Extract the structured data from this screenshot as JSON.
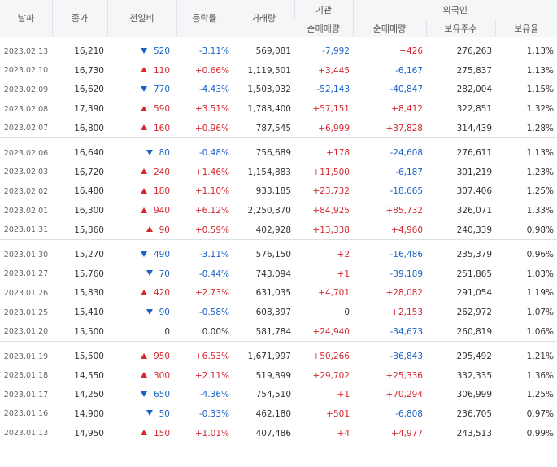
{
  "headers": {
    "date": "날짜",
    "close": "종가",
    "diff": "전일비",
    "rate": "등락률",
    "volume": "거래량",
    "institution": "기관",
    "foreigner": "외국인",
    "inst_net": "순매매량",
    "foreign_net": "순매매량",
    "holdings": "보유주수",
    "hold_ratio": "보유율"
  },
  "groups": [
    [
      {
        "date": "2023.02.13",
        "close": "16,210",
        "dir": "down",
        "diff": "520",
        "rate": "-3.11%",
        "volume": "569,081",
        "inst": "-7,992",
        "foreign": "+426",
        "holdings": "276,263",
        "ratio": "1.13%"
      },
      {
        "date": "2023.02.10",
        "close": "16,730",
        "dir": "up",
        "diff": "110",
        "rate": "+0.66%",
        "volume": "1,119,501",
        "inst": "+3,445",
        "foreign": "-6,167",
        "holdings": "275,837",
        "ratio": "1.13%"
      },
      {
        "date": "2023.02.09",
        "close": "16,620",
        "dir": "down",
        "diff": "770",
        "rate": "-4.43%",
        "volume": "1,503,032",
        "inst": "-52,143",
        "foreign": "-40,847",
        "holdings": "282,004",
        "ratio": "1.15%"
      },
      {
        "date": "2023.02.08",
        "close": "17,390",
        "dir": "up",
        "diff": "590",
        "rate": "+3.51%",
        "volume": "1,783,400",
        "inst": "+57,151",
        "foreign": "+8,412",
        "holdings": "322,851",
        "ratio": "1.32%"
      },
      {
        "date": "2023.02.07",
        "close": "16,800",
        "dir": "up",
        "diff": "160",
        "rate": "+0.96%",
        "volume": "787,545",
        "inst": "+6,999",
        "foreign": "+37,828",
        "holdings": "314,439",
        "ratio": "1.28%"
      }
    ],
    [
      {
        "date": "2023.02.06",
        "close": "16,640",
        "dir": "down",
        "diff": "80",
        "rate": "-0.48%",
        "volume": "756,689",
        "inst": "+178",
        "foreign": "-24,608",
        "holdings": "276,611",
        "ratio": "1.13%"
      },
      {
        "date": "2023.02.03",
        "close": "16,720",
        "dir": "up",
        "diff": "240",
        "rate": "+1.46%",
        "volume": "1,154,883",
        "inst": "+11,500",
        "foreign": "-6,187",
        "holdings": "301,219",
        "ratio": "1.23%"
      },
      {
        "date": "2023.02.02",
        "close": "16,480",
        "dir": "up",
        "diff": "180",
        "rate": "+1.10%",
        "volume": "933,185",
        "inst": "+23,732",
        "foreign": "-18,665",
        "holdings": "307,406",
        "ratio": "1.25%"
      },
      {
        "date": "2023.02.01",
        "close": "16,300",
        "dir": "up",
        "diff": "940",
        "rate": "+6.12%",
        "volume": "2,250,870",
        "inst": "+84,925",
        "foreign": "+85,732",
        "holdings": "326,071",
        "ratio": "1.33%"
      },
      {
        "date": "2023.01.31",
        "close": "15,360",
        "dir": "up",
        "diff": "90",
        "rate": "+0.59%",
        "volume": "402,928",
        "inst": "+13,338",
        "foreign": "+4,960",
        "holdings": "240,339",
        "ratio": "0.98%"
      }
    ],
    [
      {
        "date": "2023.01.30",
        "close": "15,270",
        "dir": "down",
        "diff": "490",
        "rate": "-3.11%",
        "volume": "576,150",
        "inst": "+2",
        "foreign": "-16,486",
        "holdings": "235,379",
        "ratio": "0.96%"
      },
      {
        "date": "2023.01.27",
        "close": "15,760",
        "dir": "down",
        "diff": "70",
        "rate": "-0.44%",
        "volume": "743,094",
        "inst": "+1",
        "foreign": "-39,189",
        "holdings": "251,865",
        "ratio": "1.03%"
      },
      {
        "date": "2023.01.26",
        "close": "15,830",
        "dir": "up",
        "diff": "420",
        "rate": "+2.73%",
        "volume": "631,035",
        "inst": "+4,701",
        "foreign": "+28,082",
        "holdings": "291,054",
        "ratio": "1.19%"
      },
      {
        "date": "2023.01.25",
        "close": "15,410",
        "dir": "down",
        "diff": "90",
        "rate": "-0.58%",
        "volume": "608,397",
        "inst": "0",
        "foreign": "+2,153",
        "holdings": "262,972",
        "ratio": "1.07%"
      },
      {
        "date": "2023.01.20",
        "close": "15,500",
        "dir": "none",
        "diff": "0",
        "rate": "0.00%",
        "volume": "581,784",
        "inst": "+24,940",
        "foreign": "-34,673",
        "holdings": "260,819",
        "ratio": "1.06%"
      }
    ],
    [
      {
        "date": "2023.01.19",
        "close": "15,500",
        "dir": "up",
        "diff": "950",
        "rate": "+6.53%",
        "volume": "1,671,997",
        "inst": "+50,266",
        "foreign": "-36,843",
        "holdings": "295,492",
        "ratio": "1.21%"
      },
      {
        "date": "2023.01.18",
        "close": "14,550",
        "dir": "up",
        "diff": "300",
        "rate": "+2.11%",
        "volume": "519,899",
        "inst": "+29,702",
        "foreign": "+25,336",
        "holdings": "332,335",
        "ratio": "1.36%"
      },
      {
        "date": "2023.01.17",
        "close": "14,250",
        "dir": "down",
        "diff": "650",
        "rate": "-4.36%",
        "volume": "754,510",
        "inst": "+1",
        "foreign": "+70,294",
        "holdings": "306,999",
        "ratio": "1.25%"
      },
      {
        "date": "2023.01.16",
        "close": "14,900",
        "dir": "down",
        "diff": "50",
        "rate": "-0.33%",
        "volume": "462,180",
        "inst": "+501",
        "foreign": "-6,808",
        "holdings": "236,705",
        "ratio": "0.97%"
      },
      {
        "date": "2023.01.13",
        "close": "14,950",
        "dir": "up",
        "diff": "150",
        "rate": "+1.01%",
        "volume": "407,486",
        "inst": "+4",
        "foreign": "+4,977",
        "holdings": "243,513",
        "ratio": "0.99%"
      }
    ]
  ],
  "colors": {
    "up": "#d5282f",
    "down": "#1a62c5",
    "header_bg": "#f5f6f8"
  }
}
